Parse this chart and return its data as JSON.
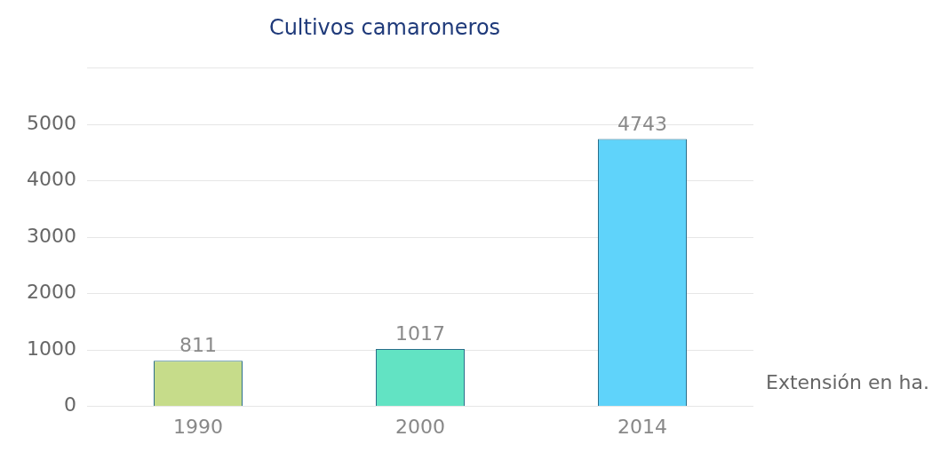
{
  "chart_data": {
    "type": "bar",
    "title": "Cultivos camaroneros",
    "categories": [
      "1990",
      "2000",
      "2014"
    ],
    "values": [
      811,
      1017,
      4743
    ],
    "colors": [
      "#c6dc8a",
      "#62e3c3",
      "#5fd3fa"
    ],
    "ylim": [
      0,
      6000
    ],
    "yticks": [
      0,
      1000,
      2000,
      3000,
      4000,
      5000,
      {
        "value": 6000,
        "label": null
      }
    ],
    "grid": "y",
    "data_labels": true,
    "annotations": [
      "Extensión en ha."
    ]
  }
}
